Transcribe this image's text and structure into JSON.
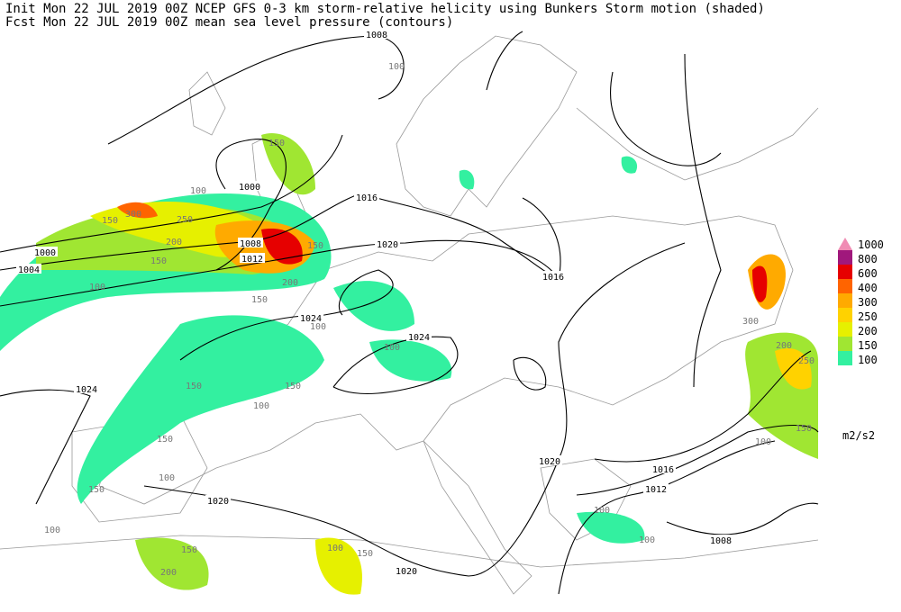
{
  "header": {
    "init": "Init  Mon 22 JUL 2019 00Z  NCEP GFS 0-3 km storm-relative helicity using Bunkers Storm motion (shaded)",
    "fcst": "Fcst  Mon 22 JUL 2019 00Z  mean sea level pressure (contours)"
  },
  "legend": {
    "unit": "m2/s2",
    "levels": [
      {
        "value": 1000,
        "color": "#f08cb4"
      },
      {
        "value": 800,
        "color": "#a0187c"
      },
      {
        "value": 600,
        "color": "#e60000"
      },
      {
        "value": 400,
        "color": "#ff6400"
      },
      {
        "value": 300,
        "color": "#ffaa00"
      },
      {
        "value": 250,
        "color": "#ffd200"
      },
      {
        "value": 200,
        "color": "#e6f000"
      },
      {
        "value": 150,
        "color": "#a0e632"
      },
      {
        "value": 100,
        "color": "#33f0a0"
      }
    ]
  },
  "isobar_labels": [
    1008,
    1000,
    1016,
    1020,
    1016,
    1000,
    1004,
    1008,
    1012,
    1024,
    1024,
    1024,
    1020,
    1016,
    1012,
    1020,
    1020,
    1008
  ],
  "helicity_labels": [
    100,
    150,
    300,
    250,
    200,
    150,
    150,
    100,
    200,
    150,
    100,
    150,
    100,
    150,
    150,
    100,
    150,
    100,
    150,
    100,
    100,
    150,
    200,
    100,
    150,
    100,
    100,
    300,
    200,
    250,
    150,
    100
  ]
}
